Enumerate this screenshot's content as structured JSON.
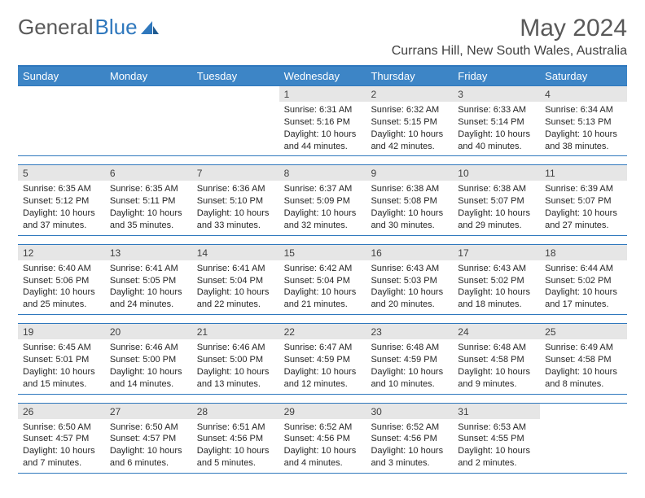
{
  "logo": {
    "text1": "General",
    "text2": "Blue"
  },
  "header": {
    "month_title": "May 2024",
    "location": "Currans Hill, New South Wales, Australia"
  },
  "colors": {
    "header_bg": "#3d85c6",
    "accent_border": "#2f78bd",
    "daynum_bg": "#e6e6e6",
    "logo_gray": "#595959",
    "logo_blue": "#2f78bd"
  },
  "daynames": [
    "Sunday",
    "Monday",
    "Tuesday",
    "Wednesday",
    "Thursday",
    "Friday",
    "Saturday"
  ],
  "weeks": [
    [
      {
        "n": "",
        "sr": "",
        "ss": "",
        "dl": ""
      },
      {
        "n": "",
        "sr": "",
        "ss": "",
        "dl": ""
      },
      {
        "n": "",
        "sr": "",
        "ss": "",
        "dl": ""
      },
      {
        "n": "1",
        "sr": "Sunrise: 6:31 AM",
        "ss": "Sunset: 5:16 PM",
        "dl": "Daylight: 10 hours and 44 minutes."
      },
      {
        "n": "2",
        "sr": "Sunrise: 6:32 AM",
        "ss": "Sunset: 5:15 PM",
        "dl": "Daylight: 10 hours and 42 minutes."
      },
      {
        "n": "3",
        "sr": "Sunrise: 6:33 AM",
        "ss": "Sunset: 5:14 PM",
        "dl": "Daylight: 10 hours and 40 minutes."
      },
      {
        "n": "4",
        "sr": "Sunrise: 6:34 AM",
        "ss": "Sunset: 5:13 PM",
        "dl": "Daylight: 10 hours and 38 minutes."
      }
    ],
    [
      {
        "n": "5",
        "sr": "Sunrise: 6:35 AM",
        "ss": "Sunset: 5:12 PM",
        "dl": "Daylight: 10 hours and 37 minutes."
      },
      {
        "n": "6",
        "sr": "Sunrise: 6:35 AM",
        "ss": "Sunset: 5:11 PM",
        "dl": "Daylight: 10 hours and 35 minutes."
      },
      {
        "n": "7",
        "sr": "Sunrise: 6:36 AM",
        "ss": "Sunset: 5:10 PM",
        "dl": "Daylight: 10 hours and 33 minutes."
      },
      {
        "n": "8",
        "sr": "Sunrise: 6:37 AM",
        "ss": "Sunset: 5:09 PM",
        "dl": "Daylight: 10 hours and 32 minutes."
      },
      {
        "n": "9",
        "sr": "Sunrise: 6:38 AM",
        "ss": "Sunset: 5:08 PM",
        "dl": "Daylight: 10 hours and 30 minutes."
      },
      {
        "n": "10",
        "sr": "Sunrise: 6:38 AM",
        "ss": "Sunset: 5:07 PM",
        "dl": "Daylight: 10 hours and 29 minutes."
      },
      {
        "n": "11",
        "sr": "Sunrise: 6:39 AM",
        "ss": "Sunset: 5:07 PM",
        "dl": "Daylight: 10 hours and 27 minutes."
      }
    ],
    [
      {
        "n": "12",
        "sr": "Sunrise: 6:40 AM",
        "ss": "Sunset: 5:06 PM",
        "dl": "Daylight: 10 hours and 25 minutes."
      },
      {
        "n": "13",
        "sr": "Sunrise: 6:41 AM",
        "ss": "Sunset: 5:05 PM",
        "dl": "Daylight: 10 hours and 24 minutes."
      },
      {
        "n": "14",
        "sr": "Sunrise: 6:41 AM",
        "ss": "Sunset: 5:04 PM",
        "dl": "Daylight: 10 hours and 22 minutes."
      },
      {
        "n": "15",
        "sr": "Sunrise: 6:42 AM",
        "ss": "Sunset: 5:04 PM",
        "dl": "Daylight: 10 hours and 21 minutes."
      },
      {
        "n": "16",
        "sr": "Sunrise: 6:43 AM",
        "ss": "Sunset: 5:03 PM",
        "dl": "Daylight: 10 hours and 20 minutes."
      },
      {
        "n": "17",
        "sr": "Sunrise: 6:43 AM",
        "ss": "Sunset: 5:02 PM",
        "dl": "Daylight: 10 hours and 18 minutes."
      },
      {
        "n": "18",
        "sr": "Sunrise: 6:44 AM",
        "ss": "Sunset: 5:02 PM",
        "dl": "Daylight: 10 hours and 17 minutes."
      }
    ],
    [
      {
        "n": "19",
        "sr": "Sunrise: 6:45 AM",
        "ss": "Sunset: 5:01 PM",
        "dl": "Daylight: 10 hours and 15 minutes."
      },
      {
        "n": "20",
        "sr": "Sunrise: 6:46 AM",
        "ss": "Sunset: 5:00 PM",
        "dl": "Daylight: 10 hours and 14 minutes."
      },
      {
        "n": "21",
        "sr": "Sunrise: 6:46 AM",
        "ss": "Sunset: 5:00 PM",
        "dl": "Daylight: 10 hours and 13 minutes."
      },
      {
        "n": "22",
        "sr": "Sunrise: 6:47 AM",
        "ss": "Sunset: 4:59 PM",
        "dl": "Daylight: 10 hours and 12 minutes."
      },
      {
        "n": "23",
        "sr": "Sunrise: 6:48 AM",
        "ss": "Sunset: 4:59 PM",
        "dl": "Daylight: 10 hours and 10 minutes."
      },
      {
        "n": "24",
        "sr": "Sunrise: 6:48 AM",
        "ss": "Sunset: 4:58 PM",
        "dl": "Daylight: 10 hours and 9 minutes."
      },
      {
        "n": "25",
        "sr": "Sunrise: 6:49 AM",
        "ss": "Sunset: 4:58 PM",
        "dl": "Daylight: 10 hours and 8 minutes."
      }
    ],
    [
      {
        "n": "26",
        "sr": "Sunrise: 6:50 AM",
        "ss": "Sunset: 4:57 PM",
        "dl": "Daylight: 10 hours and 7 minutes."
      },
      {
        "n": "27",
        "sr": "Sunrise: 6:50 AM",
        "ss": "Sunset: 4:57 PM",
        "dl": "Daylight: 10 hours and 6 minutes."
      },
      {
        "n": "28",
        "sr": "Sunrise: 6:51 AM",
        "ss": "Sunset: 4:56 PM",
        "dl": "Daylight: 10 hours and 5 minutes."
      },
      {
        "n": "29",
        "sr": "Sunrise: 6:52 AM",
        "ss": "Sunset: 4:56 PM",
        "dl": "Daylight: 10 hours and 4 minutes."
      },
      {
        "n": "30",
        "sr": "Sunrise: 6:52 AM",
        "ss": "Sunset: 4:56 PM",
        "dl": "Daylight: 10 hours and 3 minutes."
      },
      {
        "n": "31",
        "sr": "Sunrise: 6:53 AM",
        "ss": "Sunset: 4:55 PM",
        "dl": "Daylight: 10 hours and 2 minutes."
      },
      {
        "n": "",
        "sr": "",
        "ss": "",
        "dl": ""
      }
    ]
  ]
}
